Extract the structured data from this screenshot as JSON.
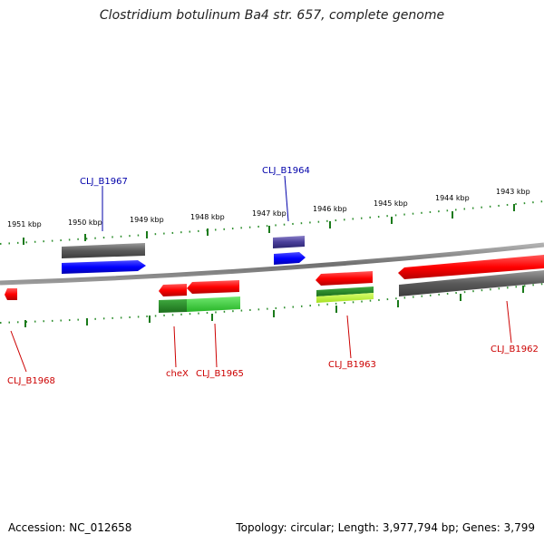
{
  "title": "Clostridium botulinum Ba4 str. 657, complete genome",
  "footer": {
    "accession": "Accession: NC_012658",
    "topology": "Topology: circular; Length: 3,977,794 bp; Genes: 3,799"
  },
  "colors": {
    "forward_gene": "#0000ff",
    "reverse_gene": "#ff0000",
    "cds_forward": "#5c5c5c",
    "cds_reverse": "#5c5c5c",
    "tick_green": "#1a7a1a",
    "backbone": "#808080",
    "forward_label": "#0000aa",
    "reverse_label": "#cc0000"
  },
  "scale_labels": [
    "1951 kbp",
    "1950 kbp",
    "1949 kbp",
    "1948 kbp",
    "1947 kbp",
    "1946 kbp",
    "1945 kbp",
    "1944 kbp",
    "1943 kbp"
  ],
  "gene_labels": {
    "forward": [
      "CLJ_B1967",
      "CLJ_B1964"
    ],
    "reverse": [
      "CLJ_B1968",
      "cheX",
      "CLJ_B1965",
      "CLJ_B1963",
      "CLJ_B1962"
    ]
  }
}
